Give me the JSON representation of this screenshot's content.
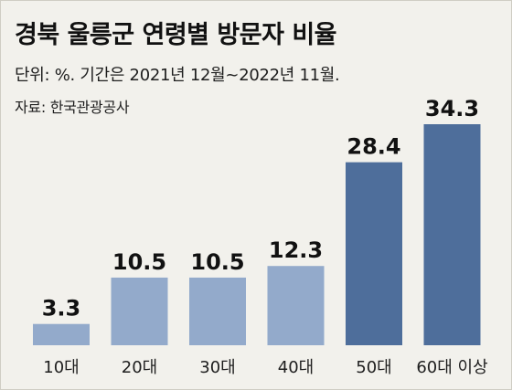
{
  "header": {
    "title": "경북 울릉군 연령별 방문자 비율",
    "subtitle": "단위: %.  기간은 2021년 12월~2022년 11월.",
    "source": "자료: 한국관광공사"
  },
  "colors": {
    "background": "#f2f1ec",
    "bar_light": "#93aacb",
    "bar_dark": "#4e6e9b"
  },
  "chart_data": {
    "type": "bar",
    "title": "경북 울릉군 연령별 방문자 비율",
    "xlabel": "",
    "ylabel": "",
    "categories": [
      "10대",
      "20대",
      "30대",
      "40대",
      "50대",
      "60대 이상"
    ],
    "values": [
      3.3,
      10.5,
      10.5,
      12.3,
      28.4,
      34.3
    ],
    "value_labels": [
      "3.3",
      "10.5",
      "10.5",
      "12.3",
      "28.4",
      "34.3"
    ],
    "bar_colors": [
      "#93aacb",
      "#93aacb",
      "#93aacb",
      "#93aacb",
      "#4e6e9b",
      "#4e6e9b"
    ],
    "ylim": [
      0,
      34.3
    ],
    "grid": false,
    "legend": "none"
  }
}
